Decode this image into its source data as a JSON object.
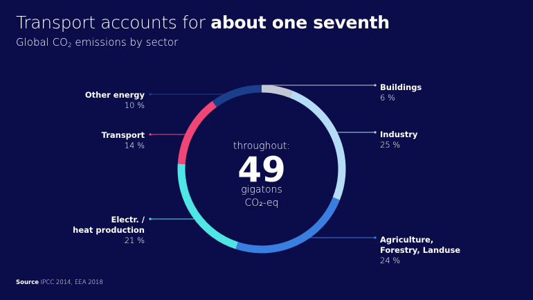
{
  "title": {
    "regular": "Transport accounts for ",
    "bold": "about one seventh"
  },
  "subtitle": {
    "pre": "Global CO",
    "sub": "2",
    "post": " emissions by sector"
  },
  "center": {
    "top": "throughout:",
    "value": "49",
    "unit": "gigatons",
    "unit2": "CO₂-eq"
  },
  "source": {
    "label": "Source",
    "text": " IPCC 2014, EEA 2018"
  },
  "chart_data": {
    "type": "pie",
    "title": "Transport accounts for about one seventh",
    "subtitle": "Global CO₂ emissions by sector",
    "total": 49,
    "total_unit": "gigatons CO₂-eq",
    "slices": [
      {
        "name": [
          "Buildings"
        ],
        "value": 6,
        "label": "6 %",
        "color": "#c4c8d4",
        "side": "right",
        "order": 0
      },
      {
        "name": [
          "Industry"
        ],
        "value": 25,
        "label": "25 %",
        "color": "#b5dcf7",
        "side": "right",
        "order": 1
      },
      {
        "name": [
          "Agriculture,",
          "Forestry, Landuse"
        ],
        "value": 24,
        "label": "24 %",
        "color": "#3a7fe0",
        "side": "right",
        "order": 2
      },
      {
        "name": [
          "Electr. /",
          "heat production"
        ],
        "value": 21,
        "label": "21 %",
        "color": "#4fe5e5",
        "side": "left",
        "order": 2
      },
      {
        "name": [
          "Transport"
        ],
        "value": 14,
        "label": "14 %",
        "color": "#ef4677",
        "side": "left",
        "order": 1
      },
      {
        "name": [
          "Other energy"
        ],
        "value": 10,
        "label": "10 %",
        "color": "#1c3f8c",
        "side": "left",
        "order": 0
      }
    ]
  }
}
